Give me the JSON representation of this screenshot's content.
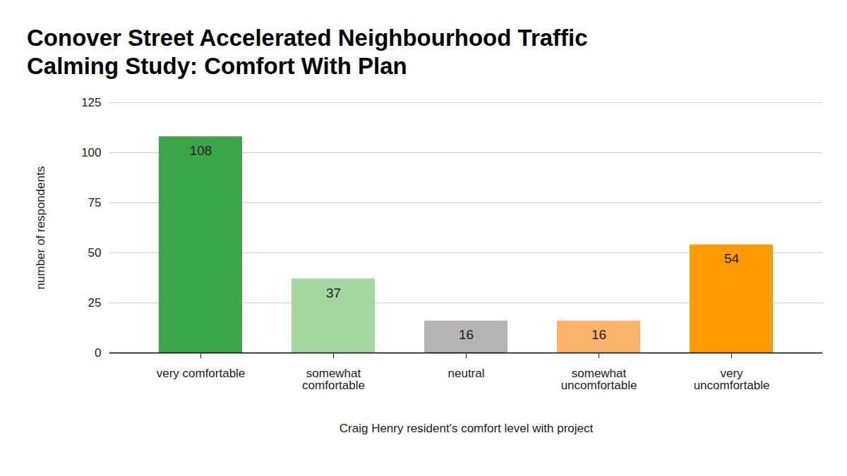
{
  "chart_data": {
    "type": "bar",
    "title": "Conover Street Accelerated Neighbourhood Traffic Calming Study: Comfort With Plan",
    "x_label": "Craig Henry resident's comfort level with project",
    "y_label": "number of respondents",
    "categories": [
      "very comfortable",
      "somewhat comfortable",
      "neutral",
      "somewhat uncomfortable",
      "very uncomfortable"
    ],
    "values": [
      108,
      37,
      16,
      16,
      54
    ],
    "colors": [
      "#3aa648",
      "#a3d6a1",
      "#b4b4b4",
      "#fbb369",
      "#ff9a00"
    ],
    "ylim": [
      0,
      125
    ],
    "yticks": [
      0,
      25,
      50,
      75,
      100,
      125
    ],
    "grid": true,
    "data_labels": true
  }
}
